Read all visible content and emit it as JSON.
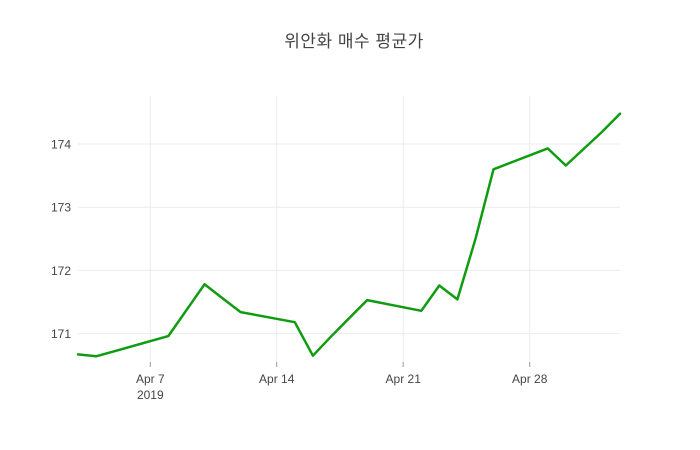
{
  "chart_data": {
    "type": "line",
    "title": "위안화 매수 평균가",
    "xlabel": "",
    "ylabel": "",
    "grid": true,
    "legend": "none",
    "background_color": "#ffffff",
    "grid_color": "#ebebeb",
    "tick_mark_color": "#999999",
    "text_color": "#444444",
    "xlim": [
      "2019-04-03",
      "2019-05-03"
    ],
    "ylim": [
      170.55,
      174.76
    ],
    "y_ticks": [
      171,
      172,
      173,
      174
    ],
    "x_ticks": [
      {
        "date": "2019-04-07",
        "label": "Apr 7",
        "sublabel": "2019"
      },
      {
        "date": "2019-04-14",
        "label": "Apr 14",
        "sublabel": ""
      },
      {
        "date": "2019-04-21",
        "label": "Apr 21",
        "sublabel": ""
      },
      {
        "date": "2019-04-28",
        "label": "Apr 28",
        "sublabel": ""
      }
    ],
    "series": [
      {
        "name": "위안화 매수 평균가",
        "color": "#109c10",
        "line_width": 2.5,
        "points": [
          {
            "date": "2019-04-03",
            "value": 170.67
          },
          {
            "date": "2019-04-04",
            "value": 170.64
          },
          {
            "date": "2019-04-05",
            "value": 170.72
          },
          {
            "date": "2019-04-08",
            "value": 170.96
          },
          {
            "date": "2019-04-09",
            "value": 171.37
          },
          {
            "date": "2019-04-10",
            "value": 171.78
          },
          {
            "date": "2019-04-11",
            "value": 171.56
          },
          {
            "date": "2019-04-12",
            "value": 171.34
          },
          {
            "date": "2019-04-15",
            "value": 171.18
          },
          {
            "date": "2019-04-16",
            "value": 170.65
          },
          {
            "date": "2019-04-17",
            "value": 170.95
          },
          {
            "date": "2019-04-18",
            "value": 171.24
          },
          {
            "date": "2019-04-19",
            "value": 171.53
          },
          {
            "date": "2019-04-22",
            "value": 171.36
          },
          {
            "date": "2019-04-23",
            "value": 171.76
          },
          {
            "date": "2019-04-24",
            "value": 171.54
          },
          {
            "date": "2019-04-25",
            "value": 172.5
          },
          {
            "date": "2019-04-26",
            "value": 173.6
          },
          {
            "date": "2019-04-29",
            "value": 173.93
          },
          {
            "date": "2019-04-30",
            "value": 173.66
          },
          {
            "date": "2019-05-02",
            "value": 174.19
          },
          {
            "date": "2019-05-03",
            "value": 174.48
          }
        ]
      }
    ]
  }
}
